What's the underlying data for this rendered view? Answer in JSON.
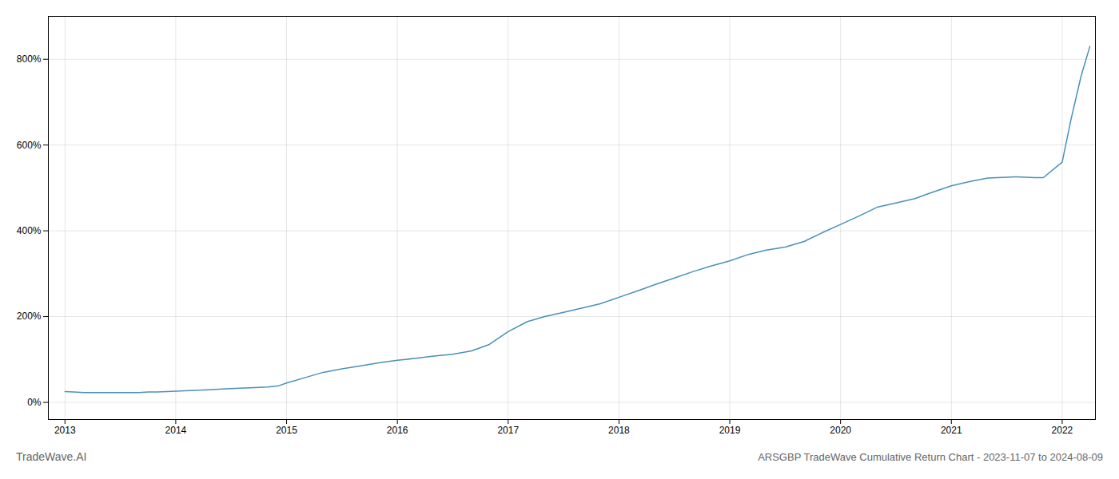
{
  "chart_data": {
    "type": "line",
    "title": "ARSGBP TradeWave Cumulative Return Chart - 2023-11-07 to 2024-08-09",
    "annotations": [
      "TradeWave.AI"
    ],
    "color": "#4a90b8",
    "grid": true,
    "xlim": [
      2012.85,
      2022.3
    ],
    "xticks": [
      2013,
      2014,
      2015,
      2016,
      2017,
      2018,
      2019,
      2020,
      2021,
      2022
    ],
    "ylim": [
      -40,
      900
    ],
    "yticks": [
      {
        "value": 0,
        "label": "0%"
      },
      {
        "value": 200,
        "label": "200%"
      },
      {
        "value": 400,
        "label": "400%"
      },
      {
        "value": 600,
        "label": "600%"
      },
      {
        "value": 800,
        "label": "800%"
      }
    ],
    "x": [
      2013.0,
      2013.08,
      2013.17,
      2013.25,
      2013.33,
      2013.42,
      2013.5,
      2013.58,
      2013.67,
      2013.75,
      2013.83,
      2013.92,
      2014.0,
      2014.08,
      2014.17,
      2014.25,
      2014.33,
      2014.42,
      2014.5,
      2014.58,
      2014.67,
      2014.75,
      2014.83,
      2014.92,
      2015.0,
      2015.17,
      2015.33,
      2015.5,
      2015.67,
      2015.83,
      2016.0,
      2016.17,
      2016.33,
      2016.5,
      2016.67,
      2016.83,
      2017.0,
      2017.17,
      2017.33,
      2017.5,
      2017.67,
      2017.83,
      2018.0,
      2018.17,
      2018.33,
      2018.5,
      2018.67,
      2018.83,
      2019.0,
      2019.17,
      2019.33,
      2019.5,
      2019.67,
      2019.83,
      2020.0,
      2020.17,
      2020.33,
      2020.5,
      2020.67,
      2020.83,
      2021.0,
      2021.17,
      2021.33,
      2021.5,
      2021.58,
      2021.67,
      2021.75,
      2021.83,
      2022.0,
      2022.08,
      2022.17,
      2022.25
    ],
    "values": [
      25,
      24,
      23,
      23,
      23,
      23,
      23,
      23,
      23,
      24,
      24,
      25,
      26,
      27,
      28,
      29,
      30,
      31,
      32,
      33,
      34,
      35,
      36,
      38,
      45,
      58,
      70,
      78,
      85,
      92,
      98,
      103,
      108,
      112,
      120,
      135,
      165,
      188,
      200,
      210,
      220,
      230,
      245,
      260,
      275,
      290,
      305,
      318,
      330,
      345,
      355,
      362,
      375,
      395,
      415,
      435,
      455,
      465,
      475,
      490,
      505,
      515,
      523,
      525,
      526,
      525,
      524,
      524,
      560,
      660,
      760,
      830
    ]
  }
}
